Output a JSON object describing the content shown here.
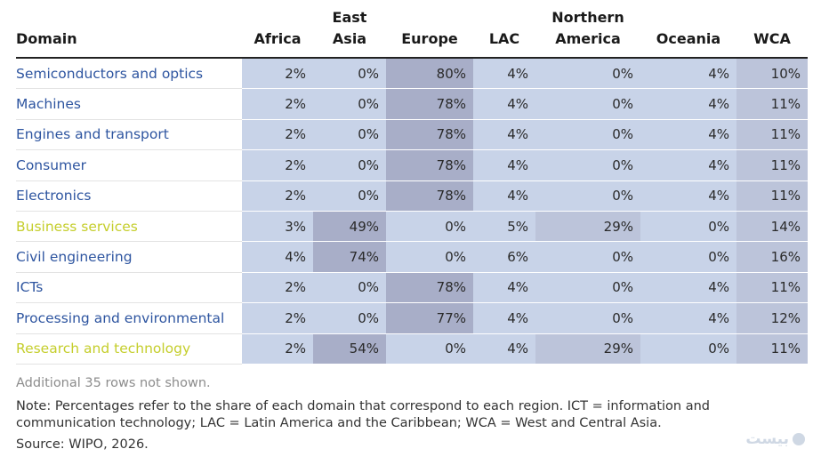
{
  "table": {
    "headers": {
      "domain": "Domain",
      "africa": "Africa",
      "east_asia": [
        "East",
        "Asia"
      ],
      "europe": "Europe",
      "lac": "LAC",
      "northern_america": [
        "Northern",
        "America"
      ],
      "oceania": "Oceania",
      "wca": "WCA"
    },
    "rows": [
      {
        "domain": "Semiconductors and optics",
        "africa": "2%",
        "east_asia": "0%",
        "europe": "80%",
        "lac": "4%",
        "northern_america": "0%",
        "oceania": "4%",
        "wca": "10%"
      },
      {
        "domain": "Machines",
        "africa": "2%",
        "east_asia": "0%",
        "europe": "78%",
        "lac": "4%",
        "northern_america": "0%",
        "oceania": "4%",
        "wca": "11%"
      },
      {
        "domain": "Engines and transport",
        "africa": "2%",
        "east_asia": "0%",
        "europe": "78%",
        "lac": "4%",
        "northern_america": "0%",
        "oceania": "4%",
        "wca": "11%"
      },
      {
        "domain": "Consumer",
        "africa": "2%",
        "east_asia": "0%",
        "europe": "78%",
        "lac": "4%",
        "northern_america": "0%",
        "oceania": "4%",
        "wca": "11%"
      },
      {
        "domain": "Electronics",
        "africa": "2%",
        "east_asia": "0%",
        "europe": "78%",
        "lac": "4%",
        "northern_america": "0%",
        "oceania": "4%",
        "wca": "11%"
      },
      {
        "domain": "Business services",
        "africa": "3%",
        "east_asia": "49%",
        "europe": "0%",
        "lac": "5%",
        "northern_america": "29%",
        "oceania": "0%",
        "wca": "14%"
      },
      {
        "domain": "Civil engineering",
        "africa": "4%",
        "east_asia": "74%",
        "europe": "0%",
        "lac": "6%",
        "northern_america": "0%",
        "oceania": "0%",
        "wca": "16%"
      },
      {
        "domain": "ICTs",
        "africa": "2%",
        "east_asia": "0%",
        "europe": "78%",
        "lac": "4%",
        "northern_america": "0%",
        "oceania": "4%",
        "wca": "11%"
      },
      {
        "domain": "Processing and environmental",
        "africa": "2%",
        "east_asia": "0%",
        "europe": "77%",
        "lac": "4%",
        "northern_america": "0%",
        "oceania": "4%",
        "wca": "12%"
      },
      {
        "domain": "Research and technology",
        "africa": "2%",
        "east_asia": "54%",
        "europe": "0%",
        "lac": "4%",
        "northern_america": "29%",
        "oceania": "0%",
        "wca": "11%"
      }
    ]
  },
  "footer": {
    "more_rows": "Additional 35 rows not shown.",
    "note": "Note: Percentages refer to the share of each domain that correspond to each region. ICT = information and communication technology; LAC = Latin America and the Caribbean; WCA = West and Central Asia.",
    "source": "Source: WIPO, 2026."
  },
  "colors": {
    "domain_link_blue": "#2e55a0",
    "domain_link_yellow": "#c5ce2c",
    "cell_light": "#c8d3e8",
    "cell_mid": "#bcc4da",
    "cell_dark": "#a8aec8"
  },
  "watermark": {
    "text": "بیست",
    "icon": "watermark-logo-icon"
  }
}
